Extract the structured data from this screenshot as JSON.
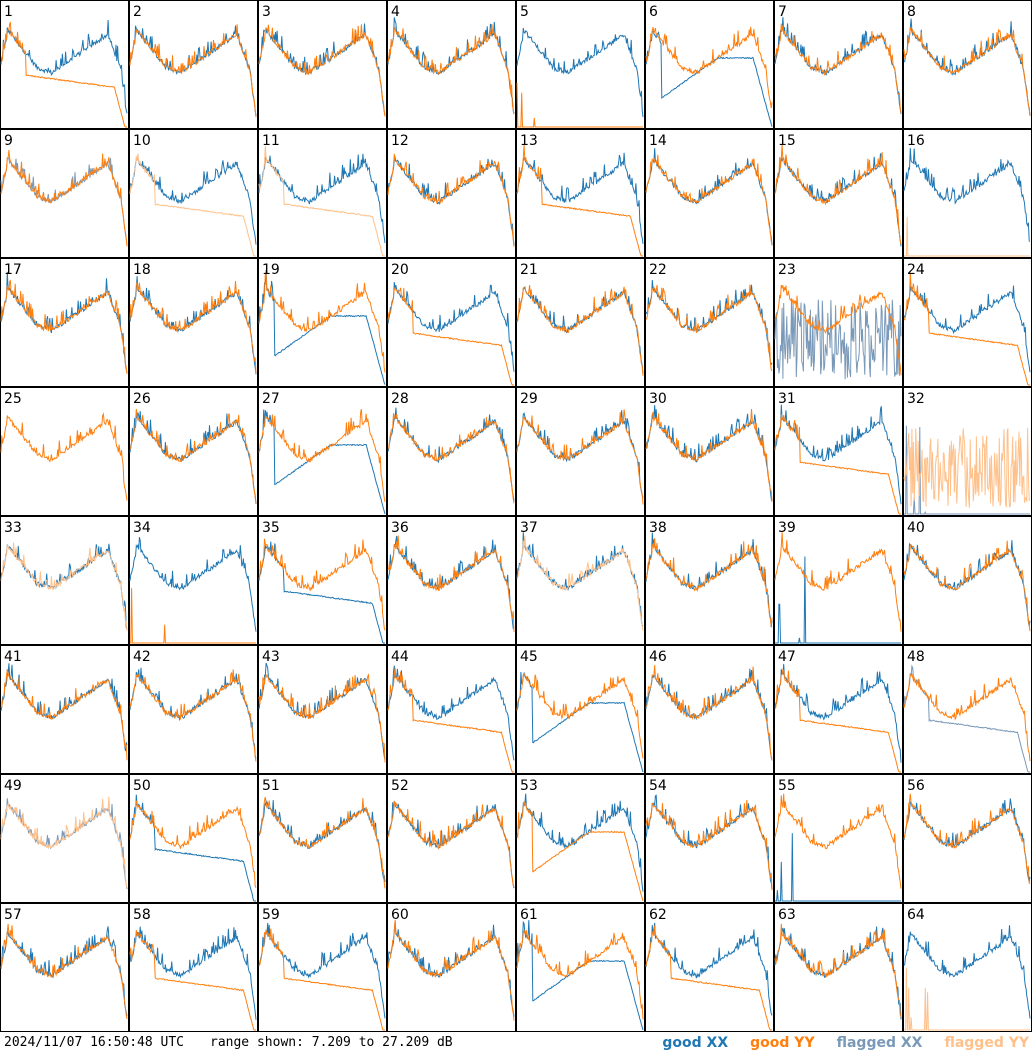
{
  "chart_data": {
    "type": "line",
    "grid": "8x8 small multiples",
    "panel_labels": [
      "1",
      "2",
      "3",
      "4",
      "5",
      "6",
      "7",
      "8",
      "9",
      "10",
      "11",
      "12",
      "13",
      "14",
      "15",
      "16",
      "17",
      "18",
      "19",
      "20",
      "21",
      "22",
      "23",
      "24",
      "25",
      "26",
      "27",
      "28",
      "29",
      "30",
      "31",
      "32",
      "33",
      "34",
      "35",
      "36",
      "37",
      "38",
      "39",
      "40",
      "41",
      "42",
      "43",
      "44",
      "45",
      "46",
      "47",
      "48",
      "49",
      "50",
      "51",
      "52",
      "53",
      "54",
      "55",
      "56",
      "57",
      "58",
      "59",
      "60",
      "61",
      "62",
      "63",
      "64"
    ],
    "ylim_db": [
      7.209,
      27.209
    ],
    "legend": [
      {
        "name": "good XX",
        "color": "#1f77b4"
      },
      {
        "name": "good YY",
        "color": "#ff7f0e"
      },
      {
        "name": "flagged XX",
        "color": "#7a99b8"
      },
      {
        "name": "flagged YY",
        "color": "#ffc08a"
      }
    ],
    "panels": {
      "1": {
        "xx": "normal",
        "yy": "low"
      },
      "2": {
        "xx": "normal",
        "yy": "normal"
      },
      "3": {
        "xx": "normal",
        "yy": "normal"
      },
      "4": {
        "xx": "normal",
        "yy": "normal"
      },
      "5": {
        "xx": "normal",
        "yy": "flat"
      },
      "6": {
        "xx": "dip",
        "yy": "normal"
      },
      "7": {
        "xx": "normal",
        "yy": "normal"
      },
      "8": {
        "xx": "normal",
        "yy": "normal"
      },
      "9": {
        "xx": "flagged_spiky",
        "yy": "normal"
      },
      "10": {
        "xx": "normal",
        "yy": "flagged_low"
      },
      "11": {
        "xx": "normal",
        "yy": "flagged_low"
      },
      "12": {
        "xx": "normal",
        "yy": "normal"
      },
      "13": {
        "xx": "normal",
        "yy": "low"
      },
      "14": {
        "xx": "normal",
        "yy": "normal"
      },
      "15": {
        "xx": "normal",
        "yy": "normal"
      },
      "16": {
        "xx": "normal",
        "yy": "flagged_flat"
      },
      "17": {
        "xx": "normal",
        "yy": "normal"
      },
      "18": {
        "xx": "normal",
        "yy": "normal"
      },
      "19": {
        "xx": "dip",
        "yy": "normal"
      },
      "20": {
        "xx": "normal",
        "yy": "low"
      },
      "21": {
        "xx": "normal",
        "yy": "normal"
      },
      "22": {
        "xx": "normal",
        "yy": "normal"
      },
      "23": {
        "xx": "flagged_noise",
        "yy": "normal"
      },
      "24": {
        "xx": "normal",
        "yy": "low"
      },
      "25": {
        "xx": "none",
        "yy": "normal"
      },
      "26": {
        "xx": "normal",
        "yy": "normal"
      },
      "27": {
        "xx": "dip",
        "yy": "normal"
      },
      "28": {
        "xx": "normal",
        "yy": "normal"
      },
      "29": {
        "xx": "normal",
        "yy": "normal"
      },
      "30": {
        "xx": "normal",
        "yy": "normal"
      },
      "31": {
        "xx": "normal",
        "yy": "low"
      },
      "32": {
        "xx": "flagged_flat",
        "yy": "flagged_noise"
      },
      "33": {
        "xx": "normal",
        "yy": "flagged_normal"
      },
      "34": {
        "xx": "normal",
        "yy": "flat"
      },
      "35": {
        "xx": "low",
        "yy": "normal"
      },
      "36": {
        "xx": "normal",
        "yy": "normal"
      },
      "37": {
        "xx": "normal",
        "yy": "flagged_normal"
      },
      "38": {
        "xx": "normal",
        "yy": "normal"
      },
      "39": {
        "xx": "flat",
        "yy": "normal"
      },
      "40": {
        "xx": "normal",
        "yy": "normal"
      },
      "41": {
        "xx": "normal",
        "yy": "normal"
      },
      "42": {
        "xx": "normal",
        "yy": "normal"
      },
      "43": {
        "xx": "normal",
        "yy": "normal"
      },
      "44": {
        "xx": "normal",
        "yy": "low"
      },
      "45": {
        "xx": "dip",
        "yy": "normal"
      },
      "46": {
        "xx": "normal",
        "yy": "normal"
      },
      "47": {
        "xx": "normal",
        "yy": "low"
      },
      "48": {
        "xx": "flagged_low",
        "yy": "normal"
      },
      "49": {
        "xx": "flagged_normal",
        "yy": "flagged_normal"
      },
      "50": {
        "xx": "low",
        "yy": "normal"
      },
      "51": {
        "xx": "normal",
        "yy": "normal"
      },
      "52": {
        "xx": "normal",
        "yy": "normal"
      },
      "53": {
        "xx": "normal",
        "yy": "dip"
      },
      "54": {
        "xx": "normal",
        "yy": "normal"
      },
      "55": {
        "xx": "flat",
        "yy": "normal"
      },
      "56": {
        "xx": "normal",
        "yy": "normal"
      },
      "57": {
        "xx": "normal",
        "yy": "normal"
      },
      "58": {
        "xx": "normal",
        "yy": "low"
      },
      "59": {
        "xx": "normal",
        "yy": "low"
      },
      "60": {
        "xx": "normal",
        "yy": "normal"
      },
      "61": {
        "xx": "dip",
        "yy": "normal"
      },
      "62": {
        "xx": "normal",
        "yy": "low"
      },
      "63": {
        "xx": "normal",
        "yy": "normal"
      },
      "64": {
        "xx": "normal",
        "yy": "flagged_flat"
      }
    }
  },
  "footer": {
    "timestamp": "2024/11/07 16:50:48 UTC",
    "range_text": "range shown: 7.209 to 27.209 dB"
  }
}
